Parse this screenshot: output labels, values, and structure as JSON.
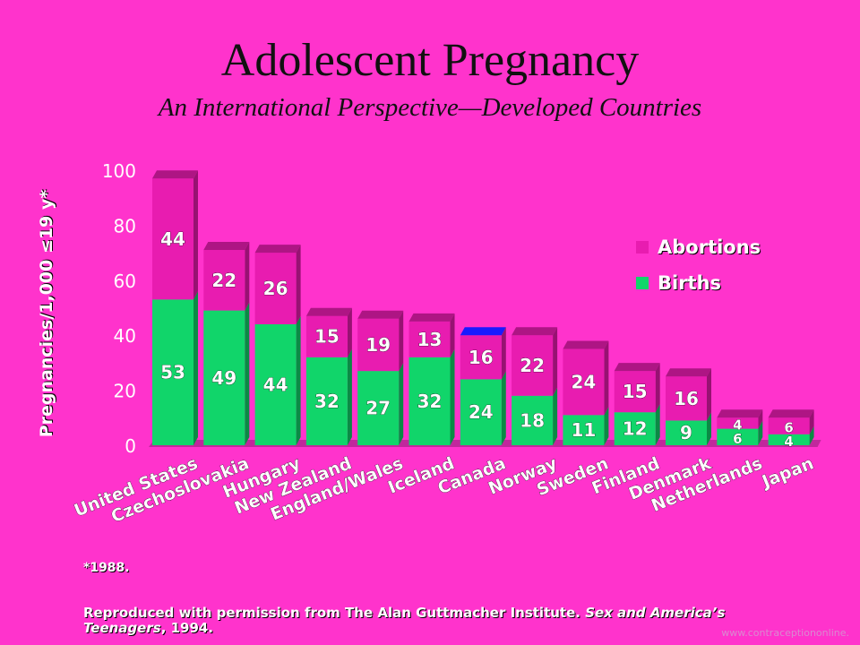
{
  "title": "Adolescent Pregnancy",
  "subtitle": "An International Perspective—Developed Countries",
  "footnote": "*1988.",
  "credit": {
    "prefix": "Reproduced with permission from The Alan Guttmacher Institute. ",
    "book": "Sex and America’s Teenagers",
    "suffix": ", 1994."
  },
  "watermark": "www.contraceptiononline.",
  "colors": {
    "background": "#ff33cc",
    "births": "#11d56a",
    "abortions": "#e81cb0",
    "canada_top_cap": "#1a1aff"
  },
  "chart_data": {
    "type": "bar",
    "stacked": true,
    "ylabel": "Pregnancies/1,000 ≤19 y*",
    "ylim": [
      0,
      100
    ],
    "yticks": [
      "0",
      "20",
      "40",
      "60",
      "80",
      "100"
    ],
    "legend_position": "right",
    "categories": [
      "United States",
      "Czechoslovakia",
      "Hungary",
      "New Zealand",
      "England/Wales",
      "Iceland",
      "Canada",
      "Norway",
      "Sweden",
      "Finland",
      "Denmark",
      "Netherlands",
      "Japan"
    ],
    "series": [
      {
        "name": "Births",
        "color": "#11d56a",
        "values": [
          53,
          49,
          44,
          32,
          27,
          32,
          24,
          18,
          11,
          12,
          9,
          6,
          4
        ]
      },
      {
        "name": "Abortions",
        "color": "#e81cb0",
        "values": [
          44,
          22,
          26,
          15,
          19,
          13,
          16,
          22,
          24,
          15,
          16,
          4,
          6
        ]
      }
    ]
  }
}
